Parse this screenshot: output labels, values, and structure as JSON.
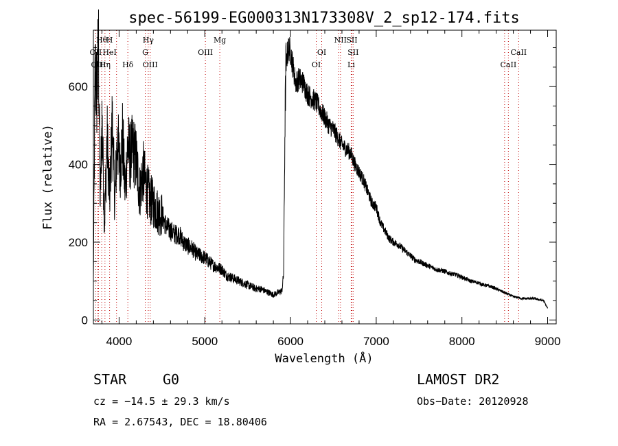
{
  "chart_data": {
    "type": "line",
    "title": "spec-56199-EG000313N173308V_2_sp12-174.fits",
    "xlabel": "Wavelength (Å)",
    "ylabel": "Flux (relative)",
    "xlim": [
      3700,
      9100
    ],
    "ylim": [
      -10,
      745
    ],
    "xticks": [
      4000,
      5000,
      6000,
      7000,
      8000,
      9000
    ],
    "yticks": [
      0,
      200,
      400,
      600
    ],
    "grid": false,
    "series": [
      {
        "x": [
          3700,
          3720,
          3740,
          3760,
          3780,
          3800,
          3830,
          3860,
          3890,
          3920,
          3950,
          3980,
          4010,
          4040,
          4070,
          4100,
          4130,
          4160,
          4200,
          4240,
          4280,
          4320,
          4360,
          4400,
          4450,
          4500,
          4550,
          4600,
          4650,
          4700,
          4750,
          4800,
          4850,
          4900,
          4950,
          5000,
          5050,
          5100,
          5150,
          5200,
          5250,
          5300,
          5350,
          5400,
          5450,
          5500,
          5550,
          5600,
          5650,
          5700,
          5750,
          5800,
          5850,
          5900,
          5920,
          5935,
          5945,
          5960,
          5980,
          6000,
          6030,
          6060,
          6100,
          6150,
          6200,
          6250,
          6300,
          6350,
          6400,
          6450,
          6500,
          6550,
          6600,
          6650,
          6700,
          6750,
          6800,
          6850,
          6900,
          6950,
          7000,
          7050,
          7100,
          7150,
          7200,
          7250,
          7300,
          7350,
          7400,
          7450,
          7500,
          7550,
          7600,
          7650,
          7700,
          7750,
          7800,
          7850,
          7900,
          7950,
          8000,
          8050,
          8100,
          8150,
          8200,
          8250,
          8300,
          8350,
          8400,
          8450,
          8500,
          8550,
          8600,
          8650,
          8700,
          8750,
          8800,
          8850,
          8900,
          8950,
          9000
        ],
        "values": [
          100,
          640,
          580,
          700,
          300,
          520,
          250,
          470,
          310,
          510,
          300,
          470,
          390,
          470,
          330,
          450,
          420,
          440,
          410,
          330,
          380,
          340,
          310,
          300,
          280,
          270,
          240,
          230,
          220,
          220,
          200,
          190,
          185,
          170,
          165,
          160,
          150,
          140,
          135,
          130,
          115,
          110,
          105,
          100,
          95,
          90,
          85,
          80,
          80,
          75,
          70,
          65,
          70,
          75,
          120,
          500,
          640,
          680,
          700,
          690,
          650,
          610,
          620,
          610,
          580,
          570,
          560,
          540,
          520,
          500,
          490,
          470,
          450,
          440,
          430,
          400,
          380,
          360,
          330,
          300,
          290,
          250,
          230,
          210,
          200,
          195,
          185,
          175,
          165,
          155,
          150,
          145,
          140,
          135,
          130,
          128,
          125,
          120,
          118,
          115,
          110,
          105,
          100,
          98,
          95,
          90,
          88,
          85,
          80,
          75,
          70,
          65,
          60,
          58,
          55,
          55,
          55,
          55,
          52,
          50,
          30
        ]
      }
    ],
    "line_labels": [
      {
        "text": "Hθ",
        "x": 3797,
        "row": 1
      },
      {
        "text": "OII",
        "x": 3727,
        "row": 2
      },
      {
        "text": "OIII",
        "x": 3760,
        "row": 3
      },
      {
        "text": "H",
        "x": 3889,
        "row": 1
      },
      {
        "text": "HeI",
        "x": 3889,
        "row": 2
      },
      {
        "text": "Hη",
        "x": 3835,
        "row": 3
      },
      {
        "text": "Hδ",
        "x": 4102,
        "row": 3
      },
      {
        "text": "Hγ",
        "x": 4340,
        "row": 1
      },
      {
        "text": "G",
        "x": 4305,
        "row": 2
      },
      {
        "text": "OIII",
        "x": 4363,
        "row": 3
      },
      {
        "text": "OIII",
        "x": 5007,
        "row": 2
      },
      {
        "text": "Mg",
        "x": 5175,
        "row": 1
      },
      {
        "text": "OI",
        "x": 6364,
        "row": 2
      },
      {
        "text": "OI",
        "x": 6300,
        "row": 3
      },
      {
        "text": "NII",
        "x": 6583,
        "row": 1
      },
      {
        "text": "SII",
        "x": 6716,
        "row": 1
      },
      {
        "text": "SII",
        "x": 6731,
        "row": 2
      },
      {
        "text": "Li",
        "x": 6708,
        "row": 3
      },
      {
        "text": "CaII",
        "x": 8662,
        "row": 2
      },
      {
        "text": "CaII",
        "x": 8542,
        "row": 3
      }
    ],
    "line_markers": [
      3727,
      3750,
      3760,
      3797,
      3835,
      3889,
      3970,
      4102,
      4305,
      4340,
      4363,
      5007,
      5175,
      6300,
      6364,
      6563,
      6583,
      6708,
      6716,
      6731,
      8498,
      8542,
      8662
    ]
  },
  "info": {
    "object_class": "STAR",
    "subclass": "G0",
    "survey": "LAMOST DR2",
    "redshift": "cz = −14.5 ± 29.3 km/s",
    "obs_date": "Obs−Date: 20120928",
    "coords": "RA =    2.67543, DEC =   18.80406"
  }
}
